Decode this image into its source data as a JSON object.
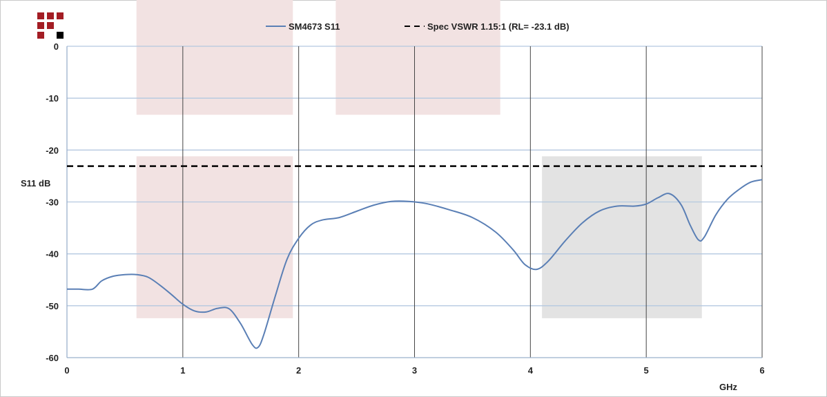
{
  "logo": {
    "icon": "red-black-grid-logo-icon",
    "colors": {
      "red": "#a31d24",
      "black": "#000000"
    }
  },
  "chart_data": {
    "type": "line",
    "title": "",
    "xlabel": "GHz",
    "ylabel": "S11 dB",
    "xlim": [
      0,
      6
    ],
    "ylim": [
      -60,
      0
    ],
    "x_ticks": [
      0,
      1,
      2,
      3,
      4,
      5,
      6
    ],
    "y_ticks": [
      0,
      -10,
      -20,
      -30,
      -40,
      -50,
      -60
    ],
    "grid": {
      "vertical": true,
      "horizontal": true,
      "vertical_color": "#444444",
      "horizontal_color": "#b4c8e0"
    },
    "legend": {
      "placement": "top",
      "entries": [
        "SM4673 S11",
        "Spec VSWR 1.15:1 (RL= -23.1 dB)"
      ]
    },
    "series": [
      {
        "name": "SM4673 S11",
        "style": "solid",
        "color": "#5a7fb5",
        "points": [
          [
            0.0,
            -46.8
          ],
          [
            0.1,
            -46.8
          ],
          [
            0.22,
            -46.8
          ],
          [
            0.3,
            -45.2
          ],
          [
            0.4,
            -44.3
          ],
          [
            0.5,
            -44.0
          ],
          [
            0.6,
            -44.0
          ],
          [
            0.7,
            -44.5
          ],
          [
            0.8,
            -46.0
          ],
          [
            0.9,
            -47.8
          ],
          [
            1.0,
            -49.7
          ],
          [
            1.1,
            -51.0
          ],
          [
            1.2,
            -51.2
          ],
          [
            1.3,
            -50.5
          ],
          [
            1.4,
            -50.6
          ],
          [
            1.5,
            -53.5
          ],
          [
            1.6,
            -57.5
          ],
          [
            1.65,
            -58.0
          ],
          [
            1.7,
            -55.5
          ],
          [
            1.8,
            -48.0
          ],
          [
            1.9,
            -41.0
          ],
          [
            2.0,
            -37.0
          ],
          [
            2.1,
            -34.5
          ],
          [
            2.2,
            -33.5
          ],
          [
            2.35,
            -33.0
          ],
          [
            2.5,
            -31.8
          ],
          [
            2.65,
            -30.6
          ],
          [
            2.8,
            -29.9
          ],
          [
            2.95,
            -29.9
          ],
          [
            3.1,
            -30.3
          ],
          [
            3.3,
            -31.5
          ],
          [
            3.5,
            -33.0
          ],
          [
            3.7,
            -35.8
          ],
          [
            3.85,
            -39.2
          ],
          [
            3.95,
            -42.0
          ],
          [
            4.05,
            -43.0
          ],
          [
            4.15,
            -41.5
          ],
          [
            4.3,
            -37.5
          ],
          [
            4.45,
            -34.0
          ],
          [
            4.6,
            -31.7
          ],
          [
            4.75,
            -30.8
          ],
          [
            4.9,
            -30.8
          ],
          [
            5.0,
            -30.4
          ],
          [
            5.1,
            -29.2
          ],
          [
            5.2,
            -28.4
          ],
          [
            5.3,
            -30.5
          ],
          [
            5.38,
            -34.5
          ],
          [
            5.45,
            -37.3
          ],
          [
            5.5,
            -36.8
          ],
          [
            5.6,
            -32.5
          ],
          [
            5.7,
            -29.5
          ],
          [
            5.8,
            -27.6
          ],
          [
            5.9,
            -26.2
          ],
          [
            6.0,
            -25.7
          ]
        ]
      },
      {
        "name": "Spec VSWR 1.15:1 (RL= -23.1 dB)",
        "style": "dashed",
        "color": "#000000",
        "points": [
          [
            0,
            -23.1
          ],
          [
            6,
            -23.1
          ]
        ]
      }
    ],
    "shaded_regions": [
      {
        "x": [
          0.6,
          1.95
        ],
        "y": [
          -13.2,
          0
        ],
        "color": "#f2e2e2"
      },
      {
        "x": [
          2.32,
          3.74
        ],
        "y": [
          -13.2,
          0
        ],
        "color": "#f2e2e2"
      },
      {
        "x": [
          0.6,
          1.95
        ],
        "y": [
          -52.4,
          -21.2
        ],
        "color": "#f2e2e2"
      },
      {
        "x": [
          4.1,
          5.48
        ],
        "y": [
          -52.4,
          -21.2
        ],
        "color": "#e3e3e3"
      }
    ]
  }
}
